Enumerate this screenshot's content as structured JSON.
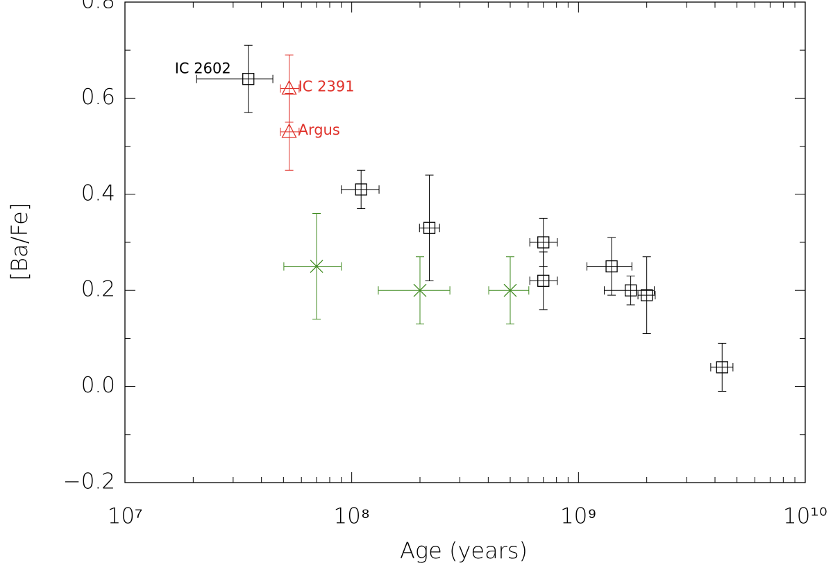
{
  "chart_data": {
    "type": "scatter",
    "xlabel": "Age (years)",
    "ylabel": "[Ba/Fe]",
    "xscale": "log",
    "xlim": [
      10000000,
      10000000000
    ],
    "xticks": [
      {
        "value": 10000000,
        "label": "10⁷"
      },
      {
        "value": 100000000,
        "label": "10⁸"
      },
      {
        "value": 1000000000,
        "label": "10⁹"
      },
      {
        "value": 10000000000,
        "label": "10¹⁰"
      }
    ],
    "xminorticks": [
      20000000,
      30000000,
      40000000,
      50000000,
      60000000,
      70000000,
      80000000,
      90000000,
      200000000,
      300000000,
      400000000,
      500000000,
      600000000,
      700000000,
      800000000,
      900000000,
      2000000000,
      3000000000,
      4000000000,
      5000000000,
      6000000000,
      7000000000,
      8000000000,
      9000000000
    ],
    "ylim": [
      -0.2,
      0.8
    ],
    "yticks": [
      {
        "value": -0.2,
        "label": "−0.2"
      },
      {
        "value": 0,
        "label": "0.0"
      },
      0.2,
      0.4,
      0.6,
      0.8
    ],
    "yminorticks": [
      -0.1,
      0.1,
      0.3,
      0.5,
      0.7
    ],
    "series": [
      {
        "color": "#000000",
        "marker": "square",
        "x": [
          35000000,
          110000000,
          220000000,
          700000000,
          700000000,
          1400000000,
          1700000000,
          2000000000,
          4300000000
        ],
        "xmin": [
          20700000,
          90000000,
          199000000,
          610000000,
          610000000,
          1090000000,
          1300000000,
          1830000000,
          3830000000
        ],
        "xmax": [
          44900000,
          132000000,
          244000000,
          807000000,
          807000000,
          1720000000,
          2160000000,
          2180000000,
          4800000000
        ],
        "values": [
          0.64,
          0.41,
          0.33,
          0.3,
          0.22,
          0.25,
          0.2,
          0.19,
          0.04
        ],
        "yerr": [
          0.07,
          0.04,
          0.11,
          0.05,
          0.06,
          0.06,
          0.03,
          0.08,
          0.05
        ],
        "labels": [
          "IC 2602",
          null,
          null,
          null,
          null,
          null,
          null,
          null,
          null
        ]
      },
      {
        "color": "#e0322b",
        "marker": "triangle",
        "x": [
          53000000,
          53000000
        ],
        "xmin": [
          48500000,
          48500000
        ],
        "xmax": [
          58600000,
          58600000
        ],
        "values": [
          0.62,
          0.53
        ],
        "yerr": [
          0.07,
          0.08
        ],
        "labels": [
          "IC 2391",
          "Argus"
        ]
      },
      {
        "color": "#3f8a1f",
        "marker": "x",
        "x": [
          70000000,
          200000000,
          500000000
        ],
        "xmin": [
          50200000,
          131000000,
          402000000
        ],
        "xmax": [
          90000000,
          271000000,
          604000000
        ],
        "values": [
          0.25,
          0.2,
          0.2
        ],
        "yerr": [
          0.11,
          0.07,
          0.07
        ]
      }
    ]
  }
}
